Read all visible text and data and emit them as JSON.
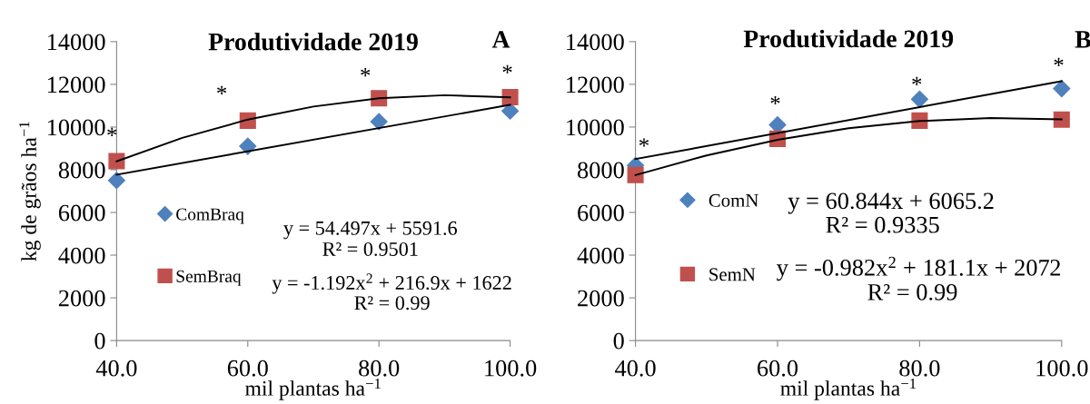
{
  "chart_data": [
    {
      "type": "scatter",
      "title": "Produtividade 2019",
      "xlabel": "mil plantas ha$^{−1}$",
      "ylabel": "kg de grãos ha$^{−1}$",
      "x": [
        40,
        60,
        80,
        100
      ],
      "xlim": [
        40,
        100
      ],
      "xticks": [
        {
          "value": 40,
          "label": "40.0"
        },
        {
          "value": 60,
          "label": "60.0"
        },
        {
          "value": 80,
          "label": "80.0"
        },
        {
          "value": 100,
          "label": "100.0"
        }
      ],
      "ylim": [
        0,
        14000
      ],
      "yticks": [
        0,
        2000,
        4000,
        6000,
        8000,
        10000,
        12000,
        14000
      ],
      "grid": false,
      "legend": "bottom left",
      "series": [
        {
          "name": "ComBraq",
          "color": "#4f81bd",
          "marker": "diamond",
          "values": [
            7500,
            9100,
            10250,
            10750
          ]
        },
        {
          "name": "SemBraq",
          "color": "#c0504d",
          "marker": "square",
          "values": [
            8400,
            10300,
            11350,
            11400
          ]
        },
        {
          "type": "line",
          "color": "#000000",
          "marker": "none",
          "x": [
            40,
            100
          ],
          "values": [
            7770,
            11040
          ]
        },
        {
          "type": "line",
          "color": "#000000",
          "marker": "none",
          "x": [
            40,
            50,
            60,
            70,
            80,
            90,
            100
          ],
          "values": [
            8390,
            9490,
            10350,
            10960,
            11350,
            11490,
            11390
          ]
        }
      ],
      "annotations": [
        "A",
        "y = 54.497x + 5591.6",
        "R² = 0.9501",
        "y = -1.192x$^{2}$ + 216.9x + 1622",
        "R² = 0.99",
        "*",
        "*",
        "*",
        "*"
      ]
    },
    {
      "type": "scatter",
      "title": "Produtividade 2019",
      "xlabel": "mil plantas ha$^{−1}$",
      "x": [
        40,
        60,
        80,
        100
      ],
      "xlim": [
        40,
        100
      ],
      "xticks": [
        {
          "value": 40,
          "label": "40.0"
        },
        {
          "value": 60,
          "label": "60.0"
        },
        {
          "value": 80,
          "label": "80.0"
        },
        {
          "value": 100,
          "label": "100.0"
        }
      ],
      "ylim": [
        0,
        14000
      ],
      "yticks": [
        0,
        2000,
        4000,
        6000,
        8000,
        10000,
        12000,
        14000
      ],
      "grid": false,
      "legend": "bottom left",
      "series": [
        {
          "name": "ComN",
          "color": "#4f81bd",
          "marker": "diamond",
          "values": [
            8200,
            10100,
            11300,
            11800
          ]
        },
        {
          "name": "SemN",
          "color": "#c0504d",
          "marker": "square",
          "values": [
            7750,
            9450,
            10300,
            10350
          ]
        },
        {
          "type": "line",
          "color": "#000000",
          "marker": "none",
          "x": [
            40,
            100
          ],
          "values": [
            8500,
            12150
          ]
        },
        {
          "type": "line",
          "color": "#000000",
          "marker": "none",
          "x": [
            40,
            50,
            60,
            70,
            80,
            90,
            100
          ],
          "values": [
            7750,
            8670,
            9400,
            9940,
            10280,
            10420,
            10360
          ]
        }
      ],
      "annotations": [
        "B",
        "y = 60.844x + 6065.2",
        "R² = 0.9335",
        "y = -0.982x$^{2}$ + 181.1x + 2072",
        "R² = 0.99",
        "*",
        "*",
        "*",
        "*"
      ]
    }
  ]
}
